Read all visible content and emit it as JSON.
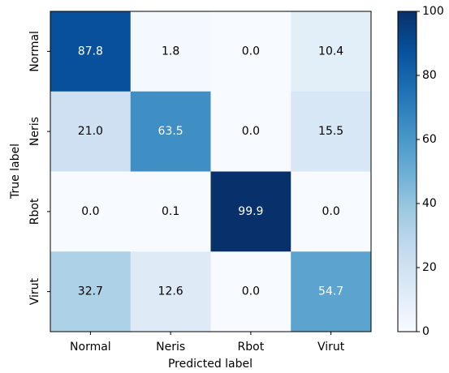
{
  "chart_data": {
    "type": "heatmap",
    "x_categories": [
      "Normal",
      "Neris",
      "Rbot",
      "Virut"
    ],
    "y_categories": [
      "Normal",
      "Neris",
      "Rbot",
      "Virut"
    ],
    "xlabel": "Predicted label",
    "ylabel": "True label",
    "values": [
      [
        87.8,
        1.8,
        0.0,
        10.4
      ],
      [
        21.0,
        63.5,
        0.0,
        15.5
      ],
      [
        0.0,
        0.1,
        99.9,
        0.0
      ],
      [
        32.7,
        12.6,
        0.0,
        54.7
      ]
    ],
    "value_labels": [
      [
        "87.8",
        "1.8",
        "0.0",
        "10.4"
      ],
      [
        "21.0",
        "63.5",
        "0.0",
        "15.5"
      ],
      [
        "0.0",
        "0.1",
        "99.9",
        "0.0"
      ],
      [
        "32.7",
        "12.6",
        "0.0",
        "54.7"
      ]
    ],
    "colormap": "Blues",
    "clim": [
      0,
      100
    ],
    "cticks": [
      0,
      20,
      40,
      60,
      80,
      100
    ]
  }
}
